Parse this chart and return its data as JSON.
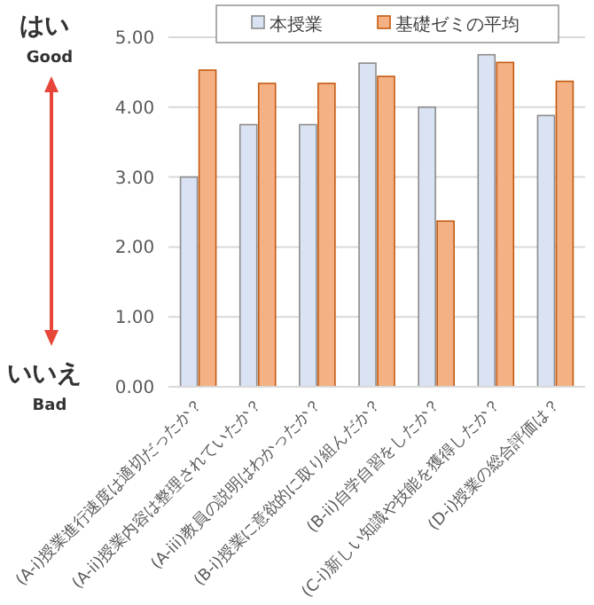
{
  "chart_data": {
    "type": "bar",
    "categories": [
      "(A-i)授業進行速度は適切だったか？",
      "(A-ii)授業内容は整理されていたか？",
      "(A-iii)教員の説明はわかったか？",
      "(B-i)授業に意欲的に取り組んだか？",
      "(B-ii)自学自習をしたか？",
      "(C-i)新しい知識や技能を獲得したか？",
      "(D-i)授業の総合評価は？"
    ],
    "series": [
      {
        "name": "本授業",
        "color": "#dae3f3",
        "values": [
          3.0,
          3.75,
          3.75,
          4.63,
          4.0,
          4.75,
          3.88
        ]
      },
      {
        "name": "基礎ゼミの平均",
        "color": "#f4b183",
        "values": [
          4.53,
          4.34,
          4.34,
          4.44,
          2.37,
          4.64,
          4.37
        ]
      }
    ],
    "ylim": [
      0,
      5
    ],
    "yticks": [
      {
        "value": 0,
        "label": "0.00"
      },
      {
        "value": 1,
        "label": "1.00"
      },
      {
        "value": 2,
        "label": "2.00"
      },
      {
        "value": 3,
        "label": "3.00"
      },
      {
        "value": 4,
        "label": "4.00"
      },
      {
        "value": 5,
        "label": "5.00"
      }
    ],
    "grid": "y",
    "legend": "top",
    "annotations": [
      "はい",
      "Good",
      "いいえ",
      "Bad"
    ]
  }
}
